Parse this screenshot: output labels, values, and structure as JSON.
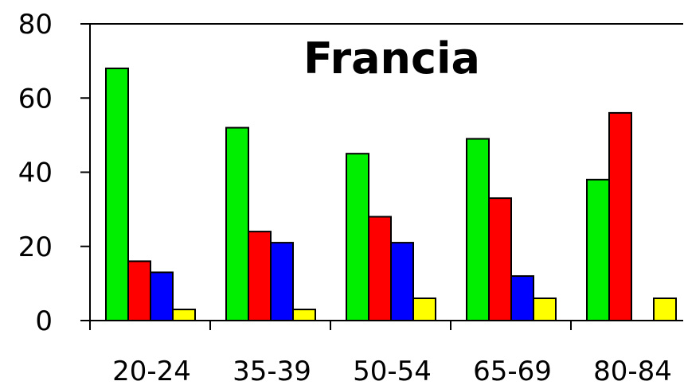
{
  "chart_data": {
    "type": "bar",
    "title": "Francia",
    "categories": [
      "20-24",
      "35-39",
      "50-54",
      "65-69",
      "80-84"
    ],
    "series": [
      {
        "color": "#00ee00",
        "values": [
          68,
          52,
          45,
          49,
          38
        ]
      },
      {
        "color": "#ff0000",
        "values": [
          16,
          24,
          28,
          33,
          56
        ]
      },
      {
        "color": "#0000ff",
        "values": [
          13,
          21,
          21,
          12,
          0
        ]
      },
      {
        "color": "#ffff00",
        "values": [
          3,
          3,
          6,
          6,
          6
        ]
      }
    ],
    "yticks": [
      "0",
      "20",
      "40",
      "60",
      "80"
    ],
    "ylim": [
      0,
      80
    ],
    "xlabel": "",
    "ylabel": "",
    "grid": false,
    "legend": "none"
  }
}
